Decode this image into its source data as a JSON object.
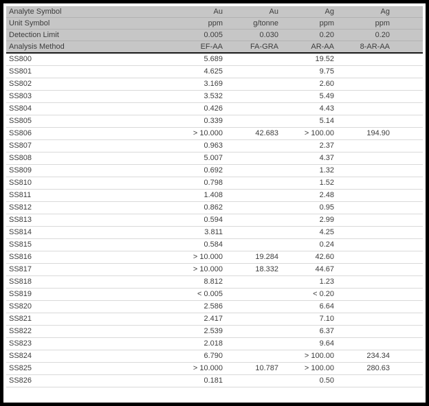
{
  "table": {
    "header_rows": [
      {
        "label": "Analyte Symbol",
        "values": [
          "Au",
          "Au",
          "Ag",
          "Ag"
        ]
      },
      {
        "label": "Unit Symbol",
        "values": [
          "ppm",
          "g/tonne",
          "ppm",
          "ppm"
        ]
      },
      {
        "label": "Detection Limit",
        "values": [
          "0.005",
          "0.030",
          "0.20",
          "0.20"
        ]
      },
      {
        "label": "Analysis Method",
        "values": [
          "EF-AA",
          "FA-GRA",
          "AR-AA",
          "8-AR-AA"
        ]
      }
    ],
    "rows": [
      {
        "sample": "SS800",
        "values": [
          "5.689",
          "",
          "19.52",
          ""
        ]
      },
      {
        "sample": "SS801",
        "values": [
          "4.625",
          "",
          "9.75",
          ""
        ]
      },
      {
        "sample": "SS802",
        "values": [
          "3.169",
          "",
          "2.60",
          ""
        ]
      },
      {
        "sample": "SS803",
        "values": [
          "3.532",
          "",
          "5.49",
          ""
        ]
      },
      {
        "sample": "SS804",
        "values": [
          "0.426",
          "",
          "4.43",
          ""
        ]
      },
      {
        "sample": "SS805",
        "values": [
          "0.339",
          "",
          "5.14",
          ""
        ]
      },
      {
        "sample": "SS806",
        "values": [
          "> 10.000",
          "42.683",
          "> 100.00",
          "194.90"
        ]
      },
      {
        "sample": "SS807",
        "values": [
          "0.963",
          "",
          "2.37",
          ""
        ]
      },
      {
        "sample": "SS808",
        "values": [
          "5.007",
          "",
          "4.37",
          ""
        ]
      },
      {
        "sample": "SS809",
        "values": [
          "0.692",
          "",
          "1.32",
          ""
        ]
      },
      {
        "sample": "SS810",
        "values": [
          "0.798",
          "",
          "1.52",
          ""
        ]
      },
      {
        "sample": "SS811",
        "values": [
          "1.408",
          "",
          "2.48",
          ""
        ]
      },
      {
        "sample": "SS812",
        "values": [
          "0.862",
          "",
          "0.95",
          ""
        ]
      },
      {
        "sample": "SS813",
        "values": [
          "0.594",
          "",
          "2.99",
          ""
        ]
      },
      {
        "sample": "SS814",
        "values": [
          "3.811",
          "",
          "4.25",
          ""
        ]
      },
      {
        "sample": "SS815",
        "values": [
          "0.584",
          "",
          "0.24",
          ""
        ]
      },
      {
        "sample": "SS816",
        "values": [
          "> 10.000",
          "19.284",
          "42.60",
          ""
        ]
      },
      {
        "sample": "SS817",
        "values": [
          "> 10.000",
          "18.332",
          "44.67",
          ""
        ]
      },
      {
        "sample": "SS818",
        "values": [
          "8.812",
          "",
          "1.23",
          ""
        ]
      },
      {
        "sample": "SS819",
        "values": [
          "< 0.005",
          "",
          "< 0.20",
          ""
        ]
      },
      {
        "sample": "SS820",
        "values": [
          "2.586",
          "",
          "6.64",
          ""
        ]
      },
      {
        "sample": "SS821",
        "values": [
          "2.417",
          "",
          "7.10",
          ""
        ]
      },
      {
        "sample": "SS822",
        "values": [
          "2.539",
          "",
          "6.37",
          ""
        ]
      },
      {
        "sample": "SS823",
        "values": [
          "2.018",
          "",
          "9.64",
          ""
        ]
      },
      {
        "sample": "SS824",
        "values": [
          "6.790",
          "",
          "> 100.00",
          "234.34"
        ]
      },
      {
        "sample": "SS825",
        "values": [
          "> 10.000",
          "10.787",
          "> 100.00",
          "280.63"
        ]
      },
      {
        "sample": "SS826",
        "values": [
          "0.181",
          "",
          "0.50",
          ""
        ]
      }
    ]
  }
}
